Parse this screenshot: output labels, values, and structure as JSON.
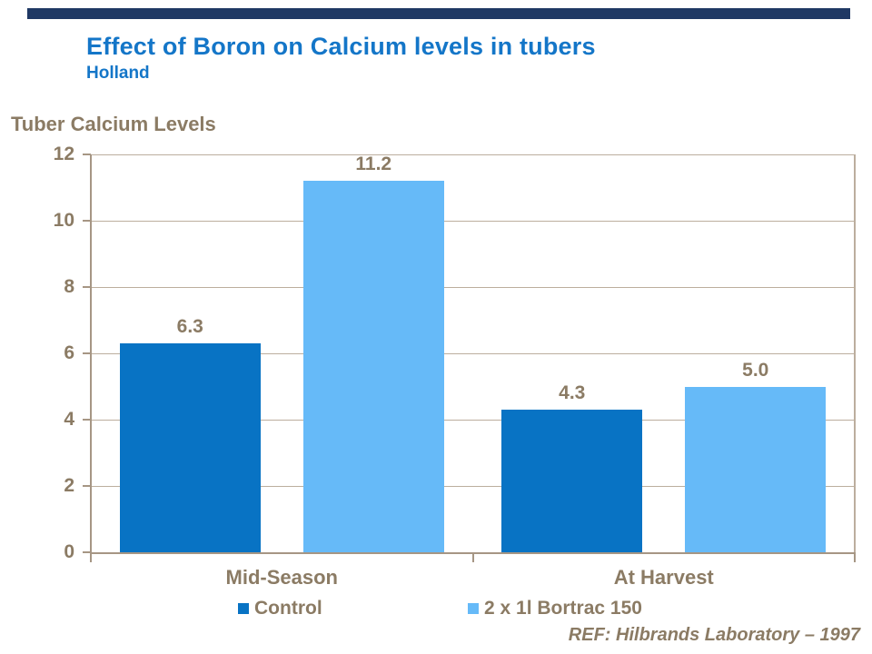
{
  "header": {
    "title": "Effect of Boron on Calcium levels in tubers",
    "subtitle": "Holland"
  },
  "footer": {
    "reference": "REF: Hilbrands Laboratory – 1997"
  },
  "colors": {
    "title_blue": "#1476C8",
    "label_tan": "#8B7B64",
    "gridline_tan": "#BCAE9E",
    "axis_tan": "#A69684",
    "top_bar_navy": "#1F3864",
    "control_blue": "#0873C4",
    "bortrac_blue": "#66BAF8"
  },
  "chart_data": {
    "type": "bar",
    "title": "Effect of Boron on Calcium levels in tubers",
    "subtitle": "Holland",
    "ylabel": "Tuber Calcium Levels",
    "xlabel": "",
    "categories": [
      "Mid-Season",
      "At Harvest"
    ],
    "series": [
      {
        "name": "Control",
        "color": "#0873C4",
        "values": [
          6.3,
          4.3
        ]
      },
      {
        "name": "2 x 1l Bortrac 150",
        "color": "#66BAF8",
        "values": [
          11.2,
          5.0
        ]
      }
    ],
    "ylim": [
      0,
      12
    ],
    "yticks": [
      0,
      2,
      4,
      6,
      8,
      10,
      12
    ],
    "grid": true,
    "legend_position": "bottom",
    "annotation": "REF: Hilbrands Laboratory – 1997"
  }
}
